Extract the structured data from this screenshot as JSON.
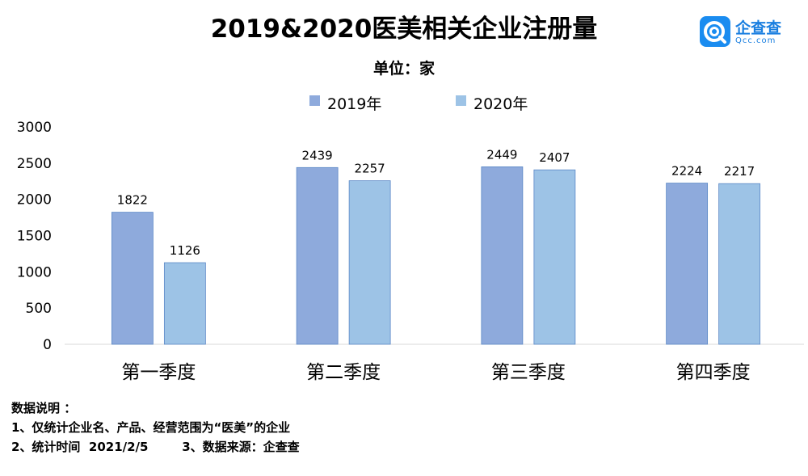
{
  "logo": {
    "name": "企查查",
    "sub": "Qcc.com"
  },
  "chart_data": {
    "type": "bar",
    "title": "2019&2020医美相关企业注册量",
    "subtitle": "单位：家",
    "categories": [
      "第一季度",
      "第二季度",
      "第三季度",
      "第四季度"
    ],
    "series": [
      {
        "name": "2019年",
        "values": [
          1822,
          2439,
          2449,
          2224
        ],
        "color": "#8eaadc"
      },
      {
        "name": "2020年",
        "values": [
          1126,
          2257,
          2407,
          2217
        ],
        "color": "#9dc3e6"
      }
    ],
    "ylim": [
      0,
      3000
    ],
    "yticks": [
      0,
      500,
      1000,
      1500,
      2000,
      2500,
      3000
    ],
    "grid": false,
    "legend": "top-center"
  },
  "notes": {
    "heading": "数据说明 ：",
    "line1": "1、仅统计企业名、产品、经营范围为“医美”的企业",
    "line2": "2、统计时间  2021/2/5        3、数据来源：企查查"
  }
}
